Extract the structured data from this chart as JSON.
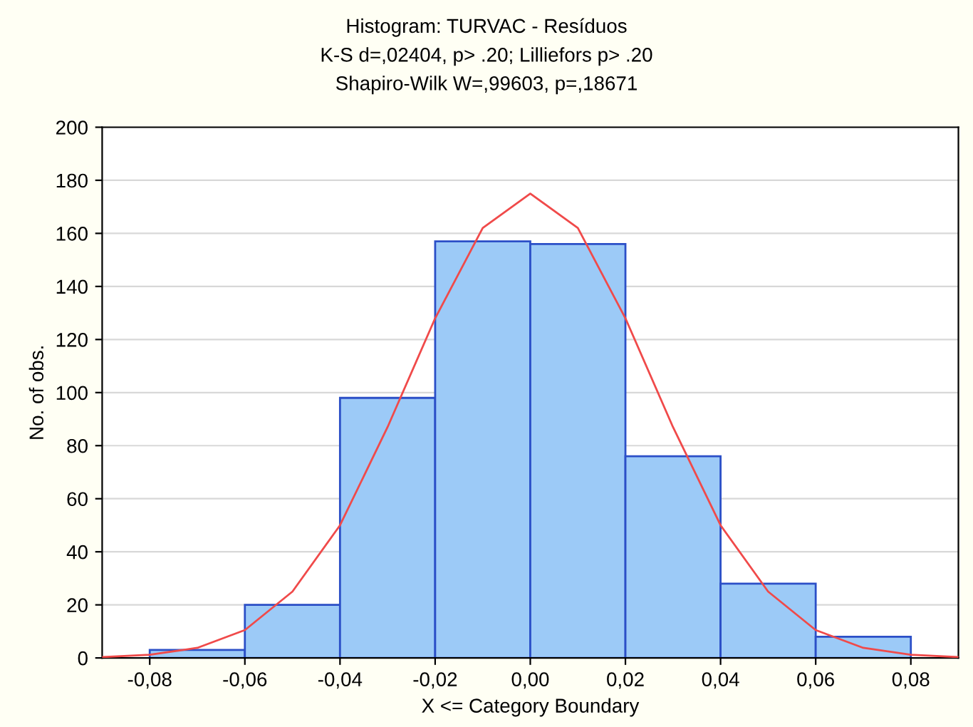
{
  "chart_data": {
    "type": "histogram",
    "title": "Histogram: TURVAC - Resíduos",
    "subtitle": "K-S d=,02404, p> .20; Lilliefors p> .20\nShapiro-Wilk W=,99603, p=,18671",
    "xlabel": "X <= Category Boundary",
    "ylabel": "No. of obs.",
    "bins": [
      -0.08,
      -0.06,
      -0.04,
      -0.02,
      0.0,
      0.02,
      0.04,
      0.06,
      0.08
    ],
    "series": [
      {
        "color": "#9ccaf7",
        "values": [
          3,
          20,
          98,
          157,
          156,
          76,
          28,
          8
        ]
      },
      {
        "type": "line",
        "color": "#f04a4a",
        "x": [
          -0.09,
          -0.08,
          -0.07,
          -0.06,
          -0.05,
          -0.04,
          -0.03,
          -0.02,
          -0.01,
          0.0,
          0.01,
          0.02,
          0.03,
          0.04,
          0.05,
          0.06,
          0.07,
          0.08,
          0.09
        ],
        "values": [
          0.3,
          1.2,
          3.8,
          10.5,
          25,
          50,
          87,
          128,
          162,
          175,
          162,
          128,
          87,
          50,
          25,
          10.5,
          3.8,
          1.2,
          0.3
        ]
      }
    ],
    "xlim": [
      -0.09,
      0.09
    ],
    "ylim": [
      0,
      200
    ],
    "xticks": [
      {
        "value": -0.08,
        "label": "-0,08"
      },
      {
        "value": -0.06,
        "label": "-0,06"
      },
      {
        "value": -0.04,
        "label": "-0,04"
      },
      {
        "value": -0.02,
        "label": "-0,02"
      },
      {
        "value": 0.0,
        "label": "0,00"
      },
      {
        "value": 0.02,
        "label": "0,02"
      },
      {
        "value": 0.04,
        "label": "0,04"
      },
      {
        "value": 0.06,
        "label": "0,06"
      },
      {
        "value": 0.08,
        "label": "0,08"
      }
    ],
    "yticks": [
      0,
      20,
      40,
      60,
      80,
      100,
      120,
      140,
      160,
      180,
      200
    ],
    "grid": "y"
  }
}
